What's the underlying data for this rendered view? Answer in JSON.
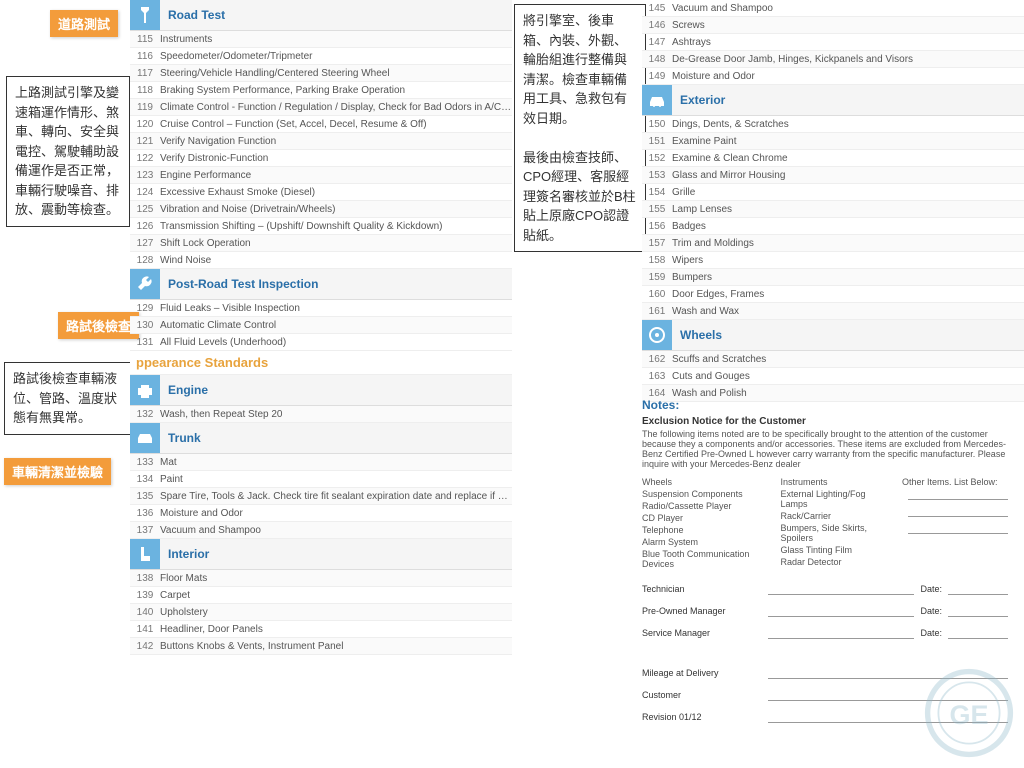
{
  "colors": {
    "accent_orange": "#f39c3b",
    "accent_blue": "#2a6fa8",
    "icon_blue": "#6bb3e0",
    "title_orange": "#e8a33d"
  },
  "left": {
    "tags": {
      "road_test": "道路測試",
      "post_road": "路試後檢查",
      "cleaning": "車輛清潔並檢驗"
    },
    "notes": {
      "road_test": "上路測試引擎及變速箱運作情形、煞車、轉向、安全與電控、駕駛輔助設備運作是否正常，車輛行駛噪音、排放、震動等檢查。",
      "post_road": "路試後檢查車輛液位、管路、溫度狀態有無異常。"
    },
    "sections": [
      {
        "title": "Road Test",
        "icon": "seatbelt",
        "items": [
          {
            "n": "115",
            "t": "Instruments"
          },
          {
            "n": "116",
            "t": "Speedometer/Odometer/Tripmeter"
          },
          {
            "n": "117",
            "t": "Steering/Vehicle Handling/Centered Steering Wheel"
          },
          {
            "n": "118",
            "t": "Braking System Performance, Parking Brake Operation"
          },
          {
            "n": "119",
            "t": "Climate Control - Function / Regulation / Display, Check for Bad Odors in A/C System"
          },
          {
            "n": "120",
            "t": "Cruise Control – Function (Set, Accel, Decel, Resume & Off)"
          },
          {
            "n": "121",
            "t": "Verify Navigation Function"
          },
          {
            "n": "122",
            "t": "Verify Distronic-Function"
          },
          {
            "n": "123",
            "t": "Engine Performance"
          },
          {
            "n": "124",
            "t": "Excessive Exhaust Smoke (Diesel)"
          },
          {
            "n": "125",
            "t": "Vibration and Noise (Drivetrain/Wheels)"
          },
          {
            "n": "126",
            "t": "Transmission Shifting – (Upshift/ Downshift Quality & Kickdown)"
          },
          {
            "n": "127",
            "t": "Shift Lock Operation"
          },
          {
            "n": "128",
            "t": "Wind Noise"
          }
        ]
      },
      {
        "title": "Post-Road Test Inspection",
        "icon": "wrench",
        "items": [
          {
            "n": "129",
            "t": "Fluid Leaks – Visible Inspection"
          },
          {
            "n": "130",
            "t": "Automatic Climate Control"
          },
          {
            "n": "131",
            "t": "All Fluid Levels (Underhood)"
          }
        ]
      }
    ],
    "big_title": "ppearance Standards",
    "sections2": [
      {
        "title": "Engine",
        "icon": "engine",
        "items": [
          {
            "n": "132",
            "t": "Wash, then Repeat Step 20"
          }
        ]
      },
      {
        "title": "Trunk",
        "icon": "trunk",
        "items": [
          {
            "n": "133",
            "t": "Mat"
          },
          {
            "n": "134",
            "t": "Paint"
          },
          {
            "n": "135",
            "t": "Spare Tire, Tools & Jack. Check tire fit sealant expiration date and replace if date is expired"
          },
          {
            "n": "136",
            "t": "Moisture and Odor"
          },
          {
            "n": "137",
            "t": "Vacuum and Shampoo"
          }
        ]
      },
      {
        "title": "Interior",
        "icon": "seat",
        "items": [
          {
            "n": "138",
            "t": "Floor Mats"
          },
          {
            "n": "139",
            "t": "Carpet"
          },
          {
            "n": "140",
            "t": "Upholstery"
          },
          {
            "n": "141",
            "t": "Headliner, Door Panels"
          },
          {
            "n": "142",
            "t": "Buttons Knobs & Vents, Instrument Panel"
          }
        ]
      }
    ]
  },
  "right": {
    "note": "將引擎室、後車箱、內裝、外觀、輪胎組進行整備與清潔。檢查車輛備用工具、急救包有效日期。\n\n最後由檢查技師、CPO經理、客服經理簽名審核並於B柱貼上原廠CPO認證貼紙。",
    "top_items": [
      {
        "n": "145",
        "t": "Vacuum and Shampoo"
      },
      {
        "n": "146",
        "t": "Screws"
      },
      {
        "n": "147",
        "t": "Ashtrays"
      },
      {
        "n": "148",
        "t": "De-Grease Door Jamb, Hinges, Kickpanels and Visors"
      },
      {
        "n": "149",
        "t": "Moisture and Odor"
      }
    ],
    "sections": [
      {
        "title": "Exterior",
        "icon": "car",
        "items": [
          {
            "n": "150",
            "t": "Dings, Dents, & Scratches"
          },
          {
            "n": "151",
            "t": "Examine Paint"
          },
          {
            "n": "152",
            "t": "Examine & Clean Chrome"
          },
          {
            "n": "153",
            "t": "Glass and Mirror Housing"
          },
          {
            "n": "154",
            "t": "Grille"
          },
          {
            "n": "155",
            "t": "Lamp Lenses"
          },
          {
            "n": "156",
            "t": "Badges"
          },
          {
            "n": "157",
            "t": "Trim and Moldings"
          },
          {
            "n": "158",
            "t": "Wipers"
          },
          {
            "n": "159",
            "t": "Bumpers"
          },
          {
            "n": "160",
            "t": "Door Edges, Frames"
          },
          {
            "n": "161",
            "t": "Wash and Wax"
          }
        ]
      },
      {
        "title": "Wheels",
        "icon": "wheel",
        "items": [
          {
            "n": "162",
            "t": "Scuffs and Scratches"
          },
          {
            "n": "163",
            "t": "Cuts and Gouges"
          },
          {
            "n": "164",
            "t": "Wash and Polish"
          }
        ]
      }
    ],
    "notes_section": {
      "title": "Notes:",
      "subtitle": "Exclusion Notice for the Customer",
      "text": "The following items noted are to be specifically brought to the attention of the customer because they a components and/or accessories. These items are excluded from Mercedes-Benz Certified Pre-Owned L however carry warranty from the specific manufacturer. Please inquire with your Mercedes-Benz dealer",
      "col1": [
        "Wheels",
        "Suspension Components",
        "Radio/Cassette Player",
        "CD Player",
        "Telephone",
        "Alarm System",
        "Blue Tooth Communication Devices"
      ],
      "col2": [
        "Instruments",
        "External Lighting/Fog Lamps",
        "Rack/Carrier",
        "Bumpers, Side Skirts, Spoilers",
        "Glass Tinting Film",
        "Radar Detector"
      ],
      "col3_header": "Other Items. List Below:",
      "sigs": [
        "Technician",
        "Pre-Owned Manager",
        "Service Manager"
      ],
      "date_label": "Date:",
      "footer": [
        "Mileage at Delivery",
        "Customer",
        "Revision 01/12"
      ]
    }
  }
}
